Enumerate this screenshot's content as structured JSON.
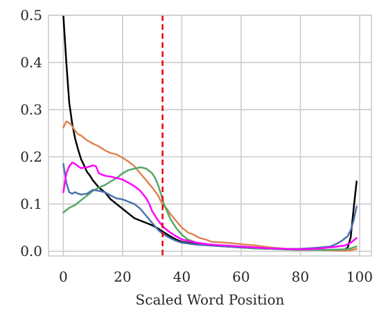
{
  "chart_data": {
    "type": "line",
    "title": "",
    "xlabel": "Scaled Word Position",
    "ylabel": "",
    "xlim": [
      -5,
      104
    ],
    "ylim": [
      -0.01,
      0.5
    ],
    "xticks": [
      0,
      20,
      40,
      60,
      80,
      100
    ],
    "yticks": [
      0.0,
      0.1,
      0.2,
      0.3,
      0.4,
      0.5
    ],
    "grid": true,
    "legend": "none",
    "vline": {
      "x": 33.5,
      "color": "#e8000b",
      "style": "dashed"
    },
    "series": [
      {
        "color": "#000000",
        "x": [
          0,
          1,
          2,
          3,
          4,
          5,
          6,
          7,
          8,
          9,
          10,
          12,
          14,
          16,
          18,
          20,
          22,
          24,
          26,
          28,
          30,
          32,
          34,
          36,
          38,
          40,
          45,
          50,
          55,
          60,
          65,
          70,
          75,
          80,
          85,
          90,
          95,
          96,
          97,
          98,
          99
        ],
        "y": [
          0.5,
          0.4,
          0.315,
          0.27,
          0.238,
          0.215,
          0.195,
          0.182,
          0.168,
          0.16,
          0.15,
          0.135,
          0.125,
          0.11,
          0.1,
          0.09,
          0.08,
          0.07,
          0.065,
          0.06,
          0.055,
          0.048,
          0.04,
          0.032,
          0.025,
          0.02,
          0.015,
          0.012,
          0.01,
          0.008,
          0.006,
          0.005,
          0.004,
          0.003,
          0.003,
          0.003,
          0.004,
          0.008,
          0.03,
          0.09,
          0.148
        ]
      },
      {
        "color": "#dd8452",
        "x": [
          0,
          1,
          2,
          3,
          4,
          5,
          6,
          7,
          8,
          10,
          12,
          14,
          16,
          18,
          20,
          22,
          24,
          26,
          28,
          30,
          32,
          33,
          34,
          35,
          36,
          38,
          40,
          42,
          44,
          46,
          48,
          50,
          55,
          60,
          65,
          70,
          75,
          80,
          85,
          90,
          95,
          97,
          99
        ],
        "y": [
          0.262,
          0.275,
          0.272,
          0.265,
          0.255,
          0.248,
          0.245,
          0.24,
          0.235,
          0.228,
          0.222,
          0.214,
          0.208,
          0.205,
          0.198,
          0.19,
          0.18,
          0.165,
          0.15,
          0.135,
          0.118,
          0.105,
          0.095,
          0.09,
          0.08,
          0.065,
          0.05,
          0.04,
          0.035,
          0.028,
          0.025,
          0.02,
          0.018,
          0.015,
          0.012,
          0.008,
          0.005,
          0.004,
          0.003,
          0.002,
          0.001,
          0.002,
          0.005
        ]
      },
      {
        "color": "#55a868",
        "x": [
          0,
          2,
          4,
          6,
          8,
          10,
          12,
          14,
          16,
          18,
          20,
          22,
          24,
          26,
          28,
          30,
          31,
          32,
          33,
          34,
          35,
          36,
          38,
          40,
          42,
          45,
          50,
          55,
          60,
          65,
          70,
          75,
          80,
          85,
          90,
          95,
          97,
          99
        ],
        "y": [
          0.082,
          0.092,
          0.098,
          0.108,
          0.118,
          0.128,
          0.135,
          0.14,
          0.148,
          0.155,
          0.165,
          0.172,
          0.175,
          0.178,
          0.175,
          0.165,
          0.155,
          0.14,
          0.12,
          0.1,
          0.085,
          0.07,
          0.05,
          0.035,
          0.025,
          0.018,
          0.012,
          0.01,
          0.008,
          0.006,
          0.005,
          0.004,
          0.003,
          0.003,
          0.003,
          0.004,
          0.006,
          0.01
        ]
      },
      {
        "color": "#4c72b0",
        "x": [
          0,
          1,
          2,
          3,
          4,
          5,
          6,
          8,
          10,
          12,
          14,
          16,
          18,
          20,
          22,
          24,
          26,
          28,
          30,
          32,
          34,
          36,
          38,
          40,
          45,
          50,
          55,
          60,
          65,
          70,
          75,
          80,
          85,
          90,
          92,
          94,
          96,
          97,
          98,
          99
        ],
        "y": [
          0.185,
          0.145,
          0.125,
          0.122,
          0.125,
          0.122,
          0.12,
          0.122,
          0.13,
          0.128,
          0.125,
          0.118,
          0.112,
          0.11,
          0.105,
          0.1,
          0.09,
          0.075,
          0.06,
          0.045,
          0.035,
          0.028,
          0.022,
          0.018,
          0.014,
          0.012,
          0.01,
          0.008,
          0.007,
          0.006,
          0.005,
          0.005,
          0.007,
          0.01,
          0.015,
          0.022,
          0.032,
          0.045,
          0.065,
          0.095
        ]
      },
      {
        "color": "#ff00ff",
        "x": [
          0,
          1,
          2,
          3,
          4,
          5,
          6,
          8,
          10,
          11,
          12,
          14,
          16,
          18,
          20,
          22,
          24,
          26,
          28,
          29,
          30,
          32,
          34,
          36,
          38,
          40,
          45,
          50,
          55,
          60,
          65,
          70,
          75,
          80,
          85,
          90,
          95,
          97,
          99
        ],
        "y": [
          0.125,
          0.165,
          0.18,
          0.188,
          0.185,
          0.18,
          0.176,
          0.178,
          0.182,
          0.18,
          0.165,
          0.16,
          0.158,
          0.155,
          0.152,
          0.145,
          0.138,
          0.128,
          0.112,
          0.1,
          0.085,
          0.065,
          0.05,
          0.04,
          0.032,
          0.025,
          0.018,
          0.014,
          0.012,
          0.01,
          0.008,
          0.006,
          0.005,
          0.004,
          0.005,
          0.008,
          0.012,
          0.018,
          0.028
        ]
      }
    ]
  }
}
